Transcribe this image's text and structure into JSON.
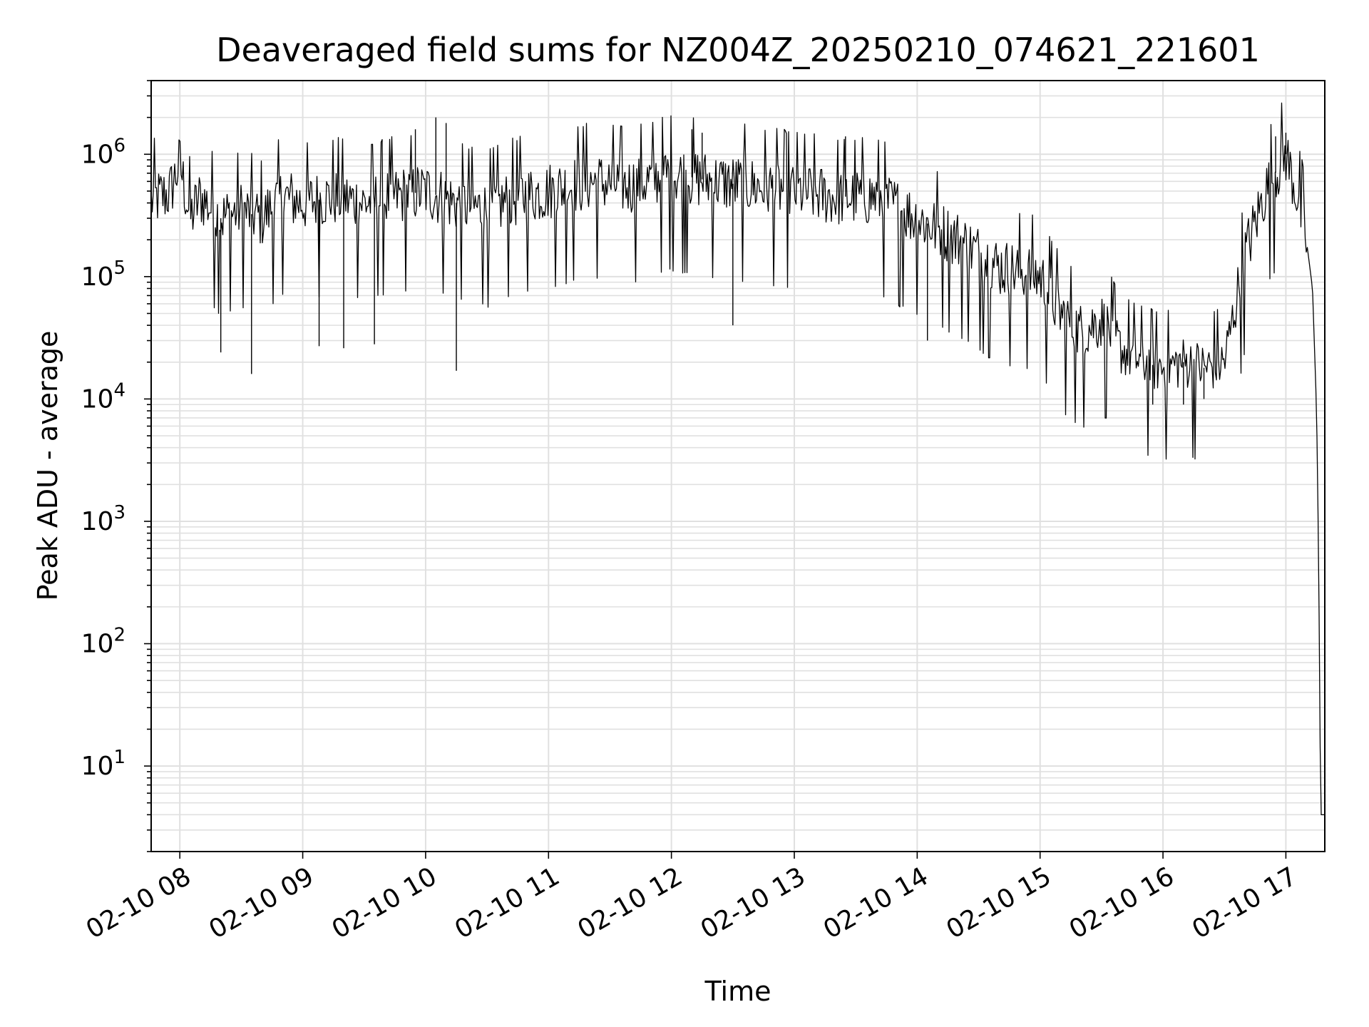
{
  "chart_data": {
    "type": "line",
    "title": "Deaveraged field sums for NZ004Z_20250210_074621_221601",
    "xlabel": "Time",
    "ylabel": "Peak ADU - average",
    "yscale": "log",
    "ylim": [
      2,
      4000000
    ],
    "xlim": [
      "2025-02-10 07:46",
      "2025-02-10 17:19"
    ],
    "x_ticks": [
      "02-10 08",
      "02-10 09",
      "02-10 10",
      "02-10 11",
      "02-10 12",
      "02-10 13",
      "02-10 14",
      "02-10 15",
      "02-10 16",
      "02-10 17"
    ],
    "x_tick_times": [
      "2025-02-10 08:00",
      "2025-02-10 09:00",
      "2025-02-10 10:00",
      "2025-02-10 11:00",
      "2025-02-10 12:00",
      "2025-02-10 13:00",
      "2025-02-10 14:00",
      "2025-02-10 15:00",
      "2025-02-10 16:00",
      "2025-02-10 17:00"
    ],
    "y_ticks": [
      {
        "base": "10",
        "exp": "1",
        "value": 10
      },
      {
        "base": "10",
        "exp": "2",
        "value": 100
      },
      {
        "base": "10",
        "exp": "3",
        "value": 1000
      },
      {
        "base": "10",
        "exp": "4",
        "value": 10000
      },
      {
        "base": "10",
        "exp": "5",
        "value": 100000
      },
      {
        "base": "10",
        "exp": "6",
        "value": 1000000
      }
    ],
    "grid": true,
    "line_color": "#000000",
    "grid_color": "#e0e0e0",
    "series": [
      {
        "x": [
          "2025-02-10 07:46",
          "2025-02-10 07:55",
          "2025-02-10 08:00",
          "2025-02-10 08:05",
          "2025-02-10 08:10",
          "2025-02-10 08:20",
          "2025-02-10 08:30",
          "2025-02-10 08:40",
          "2025-02-10 08:50",
          "2025-02-10 09:00",
          "2025-02-10 09:15",
          "2025-02-10 09:30",
          "2025-02-10 09:45",
          "2025-02-10 10:00",
          "2025-02-10 10:15",
          "2025-02-10 10:30",
          "2025-02-10 10:45",
          "2025-02-10 11:00",
          "2025-02-10 11:20",
          "2025-02-10 11:40",
          "2025-02-10 12:00",
          "2025-02-10 12:20",
          "2025-02-10 12:40",
          "2025-02-10 13:00",
          "2025-02-10 13:20",
          "2025-02-10 13:40",
          "2025-02-10 14:00",
          "2025-02-10 14:20",
          "2025-02-10 14:40",
          "2025-02-10 15:00",
          "2025-02-10 15:10",
          "2025-02-10 15:20",
          "2025-02-10 15:30",
          "2025-02-10 15:40",
          "2025-02-10 15:50",
          "2025-02-10 16:00",
          "2025-02-10 16:10",
          "2025-02-10 16:20",
          "2025-02-10 16:30",
          "2025-02-10 16:40",
          "2025-02-10 16:50",
          "2025-02-10 17:00",
          "2025-02-10 17:05",
          "2025-02-10 17:10",
          "2025-02-10 17:13",
          "2025-02-10 17:15",
          "2025-02-10 17:16",
          "2025-02-10 17:17",
          "2025-02-10 17:19"
        ],
        "y": [
          420000,
          480000,
          850000,
          300000,
          450000,
          300000,
          350000,
          300000,
          450000,
          400000,
          450000,
          400000,
          450000,
          500000,
          400000,
          350000,
          450000,
          500000,
          600000,
          550000,
          700000,
          600000,
          550000,
          500000,
          450000,
          450000,
          300000,
          200000,
          120000,
          100000,
          50000,
          35000,
          45000,
          25000,
          20000,
          18000,
          20000,
          18000,
          20000,
          150000,
          500000,
          1000000,
          500000,
          200000,
          80000,
          8000,
          500,
          4,
          4
        ],
        "lows": [
          {
            "x": "2025-02-10 08:20",
            "y": 24000
          },
          {
            "x": "2025-02-10 08:35",
            "y": 16000
          },
          {
            "x": "2025-02-10 09:08",
            "y": 27000
          },
          {
            "x": "2025-02-10 09:20",
            "y": 26000
          },
          {
            "x": "2025-02-10 09:35",
            "y": 28000
          },
          {
            "x": "2025-02-10 10:15",
            "y": 17000
          },
          {
            "x": "2025-02-10 12:30",
            "y": 40000
          },
          {
            "x": "2025-02-10 14:05",
            "y": 30000
          },
          {
            "x": "2025-02-10 15:55",
            "y": 9000
          },
          {
            "x": "2025-02-10 16:10",
            "y": 9000
          },
          {
            "x": "2025-02-10 16:20",
            "y": 10000
          }
        ],
        "highs": [
          {
            "x": "2025-02-10 09:55",
            "y": 1600000
          },
          {
            "x": "2025-02-10 10:05",
            "y": 2000000
          },
          {
            "x": "2025-02-10 10:10",
            "y": 1800000
          },
          {
            "x": "2025-02-10 12:10",
            "y": 1600000
          },
          {
            "x": "2025-02-10 12:15",
            "y": 1500000
          },
          {
            "x": "2025-02-10 13:25",
            "y": 1400000
          },
          {
            "x": "2025-02-10 16:55",
            "y": 1400000
          },
          {
            "x": "2025-02-10 17:00",
            "y": 1500000
          }
        ]
      }
    ]
  }
}
